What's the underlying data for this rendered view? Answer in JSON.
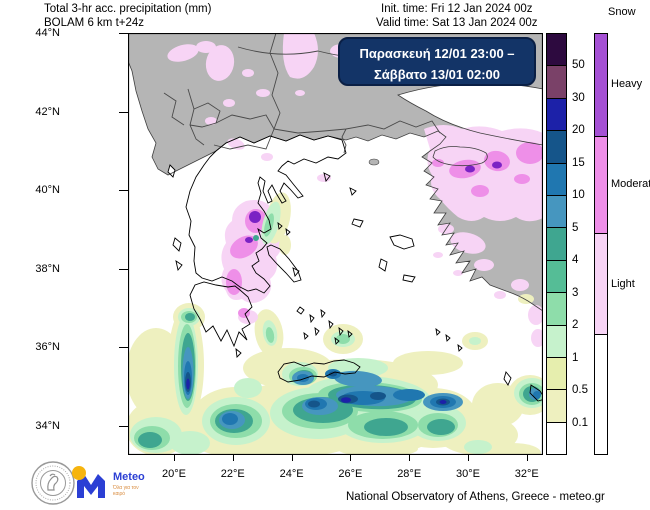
{
  "header": {
    "title_line1": "Total 3-hr acc. precipitation (mm)",
    "title_line2": "BOLAM 6 km t+24z",
    "init_time": "Init. time: Fri 12 Jan 2024 00z",
    "valid_time": "Valid time: Sat 13 Jan 2024 00z"
  },
  "info_box": {
    "line1": "Παρασκευή  12/01  23:00 –",
    "line2": "Σάββατο  13/01 02:00",
    "bg": "#133467"
  },
  "axes": {
    "lon": [
      "20°E",
      "22°E",
      "24°E",
      "26°E",
      "28°E",
      "30°E",
      "32°E"
    ],
    "lat": [
      "44°N",
      "42°N",
      "40°N",
      "38°N",
      "36°N",
      "34°N"
    ]
  },
  "legend": {
    "snow_title": "Snow",
    "precip_ticks": [
      "50",
      "30",
      "20",
      "15",
      "10",
      "5",
      "4",
      "3",
      "2",
      "1",
      "0.5",
      "0.1"
    ],
    "precip_colors": [
      "#2d0a3f",
      "#7a4168",
      "#1c21a8",
      "#15558a",
      "#2077b0",
      "#4696bf",
      "#3fa690",
      "#55bd96",
      "#8eddaa",
      "#c6f2cc",
      "#e6eeae",
      "#eef0bf",
      "#ffffff"
    ],
    "snow_labels": [
      "Heavy",
      "Moderate",
      "Light"
    ],
    "snow_colors": [
      "#a551d4",
      "#ee8fe8",
      "#f7d4f5",
      "#ffffff"
    ],
    "snow_segment_heights": [
      102,
      98,
      102,
      120
    ],
    "snow_core_color": "#7b22c4",
    "land_color": "#b5b5b5"
  },
  "footer": {
    "credit": "National Observatory of Athens, Greece - meteo.gr",
    "logo_name": "Meteo",
    "logo_tagline": "Όλα για τον καιρό"
  }
}
